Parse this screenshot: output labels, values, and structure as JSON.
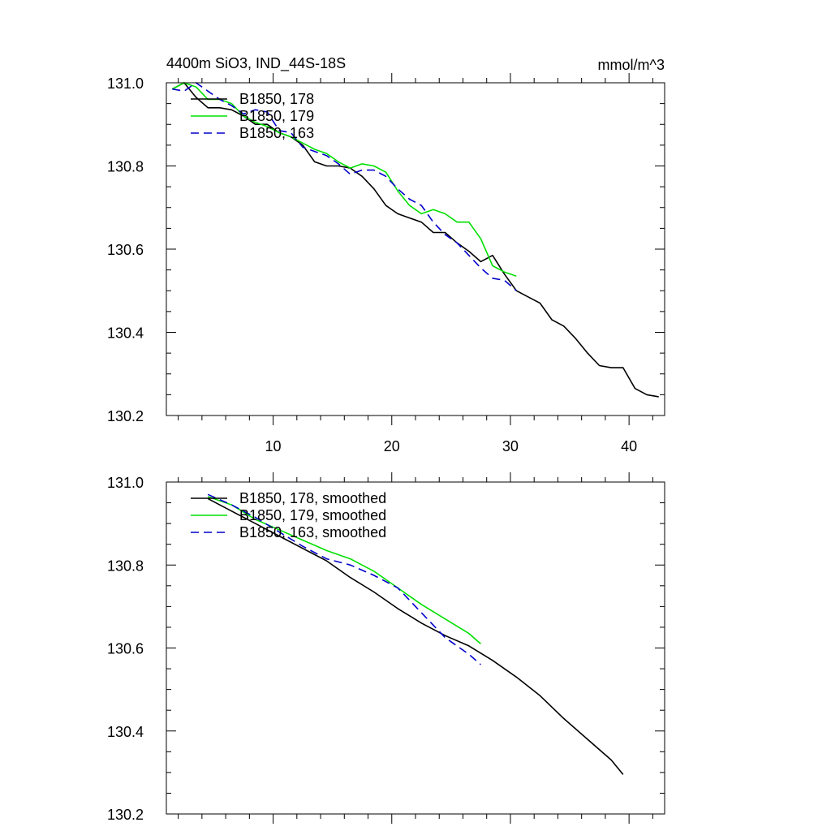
{
  "chart_data": [
    {
      "type": "line",
      "title": "4400m SiO3, IND_44S-18S",
      "units": "mmol/m^3",
      "xlim": [
        1,
        43
      ],
      "ylim": [
        130.2,
        131.0
      ],
      "x_ticks": [
        10,
        20,
        30,
        40
      ],
      "x_tick_labels": [
        "10",
        "20",
        "30",
        "40"
      ],
      "y_ticks": [
        130.2,
        130.4,
        130.6,
        130.8,
        131.0
      ],
      "y_tick_labels": [
        "130.2",
        "130.4",
        "130.6",
        "130.8",
        "131.0"
      ],
      "legend_position": "top-left",
      "series": [
        {
          "name": "B1850, 178",
          "color": "#000000",
          "dash": "solid",
          "x": [
            1.5,
            2.5,
            3.5,
            4.5,
            5.5,
            6.5,
            7.5,
            8.5,
            9.5,
            10.5,
            11.5,
            12.5,
            13.5,
            14.5,
            15.5,
            16.5,
            17.5,
            18.5,
            19.5,
            20.5,
            21.5,
            22.5,
            23.5,
            24.5,
            25.5,
            26.5,
            27.5,
            28.5,
            29.5,
            30.5,
            31.5,
            32.5,
            33.5,
            34.5,
            35.5,
            36.5,
            37.5,
            38.5,
            39.5,
            40.5,
            41.5,
            42.5
          ],
          "y": [
            130.985,
            131.0,
            130.965,
            130.94,
            130.94,
            130.935,
            130.92,
            130.9,
            130.9,
            130.88,
            130.87,
            130.85,
            130.81,
            130.8,
            130.8,
            130.795,
            130.775,
            130.745,
            130.705,
            130.685,
            130.675,
            130.665,
            130.64,
            130.64,
            130.615,
            130.595,
            130.57,
            130.585,
            130.54,
            130.5,
            130.485,
            130.47,
            130.43,
            130.415,
            130.385,
            130.35,
            130.32,
            130.315,
            130.315,
            130.265,
            130.25,
            130.245
          ]
        },
        {
          "name": "B1850, 179",
          "color": "#00e000",
          "dash": "solid",
          "x": [
            1.5,
            2.5,
            3.5,
            4.5,
            5.5,
            6.5,
            7.5,
            8.5,
            9.5,
            10.5,
            11.5,
            12.5,
            13.5,
            14.5,
            15.5,
            16.5,
            17.5,
            18.5,
            19.5,
            20.5,
            21.5,
            22.5,
            23.5,
            24.5,
            25.5,
            26.5,
            27.5,
            28.5,
            29.5,
            30.5
          ],
          "y": [
            130.985,
            131.0,
            130.99,
            130.96,
            130.96,
            130.95,
            130.92,
            130.905,
            130.895,
            130.88,
            130.87,
            130.855,
            130.84,
            130.83,
            130.81,
            130.795,
            130.805,
            130.8,
            130.785,
            130.74,
            130.705,
            130.685,
            130.695,
            130.685,
            130.665,
            130.665,
            130.625,
            130.56,
            130.545,
            130.535
          ]
        },
        {
          "name": "B1850, 163",
          "color": "#0000cc",
          "dash": "dashed",
          "x": [
            1.5,
            2.5,
            3.5,
            4.5,
            5.5,
            6.5,
            7.5,
            8.5,
            9.5,
            10.5,
            11.5,
            12.5,
            13.5,
            14.5,
            15.5,
            16.5,
            17.5,
            18.5,
            19.5,
            20.5,
            21.5,
            22.5,
            23.5,
            24.5,
            25.5,
            26.5,
            27.5,
            28.5,
            29.5,
            30.5
          ],
          "y": [
            130.985,
            130.98,
            131.0,
            130.98,
            130.96,
            130.945,
            130.925,
            130.935,
            130.93,
            130.885,
            130.88,
            130.845,
            130.835,
            130.825,
            130.805,
            130.78,
            130.79,
            130.79,
            130.775,
            130.745,
            130.72,
            130.705,
            130.665,
            130.635,
            130.615,
            130.585,
            130.555,
            130.53,
            130.525,
            130.5
          ]
        }
      ]
    },
    {
      "type": "line",
      "xlim": [
        1,
        43
      ],
      "ylim": [
        130.2,
        131.0
      ],
      "x_ticks": [
        10,
        20,
        30,
        40
      ],
      "y_ticks": [
        130.2,
        130.4,
        130.6,
        130.8,
        131.0
      ],
      "y_tick_labels": [
        "130.2",
        "130.4",
        "130.6",
        "130.8",
        "131.0"
      ],
      "legend_position": "top-left",
      "series": [
        {
          "name": "B1850, 178, smoothed",
          "color": "#000000",
          "dash": "solid",
          "x": [
            4.5,
            6.5,
            8.5,
            10.5,
            12.5,
            14.5,
            16.5,
            18.5,
            20.5,
            22.5,
            24.5,
            26.5,
            28.5,
            30.5,
            32.5,
            34.5,
            36.5,
            38.5,
            39.5
          ],
          "y": [
            130.96,
            130.93,
            130.9,
            130.87,
            130.84,
            130.81,
            130.77,
            130.735,
            130.695,
            130.66,
            130.63,
            130.605,
            130.57,
            130.53,
            130.485,
            130.43,
            130.38,
            130.33,
            130.295
          ]
        },
        {
          "name": "B1850, 179, smoothed",
          "color": "#00e000",
          "dash": "solid",
          "x": [
            4.5,
            6.5,
            8.5,
            10.5,
            12.5,
            14.5,
            16.5,
            18.5,
            20.5,
            22.5,
            24.5,
            26.5,
            27.5
          ],
          "y": [
            130.965,
            130.945,
            130.91,
            130.885,
            130.86,
            130.835,
            130.815,
            130.785,
            130.745,
            130.705,
            130.67,
            130.635,
            130.61
          ]
        },
        {
          "name": "B1850, 163, smoothed",
          "color": "#0000cc",
          "dash": "dashed",
          "x": [
            4.5,
            6.5,
            8.5,
            10.5,
            12.5,
            14.5,
            16.5,
            18.5,
            20.5,
            22.5,
            24.5,
            26.5,
            27.5
          ],
          "y": [
            130.97,
            130.945,
            130.915,
            130.88,
            130.845,
            130.815,
            130.8,
            130.775,
            130.745,
            130.685,
            130.625,
            130.585,
            130.56
          ]
        }
      ]
    }
  ]
}
